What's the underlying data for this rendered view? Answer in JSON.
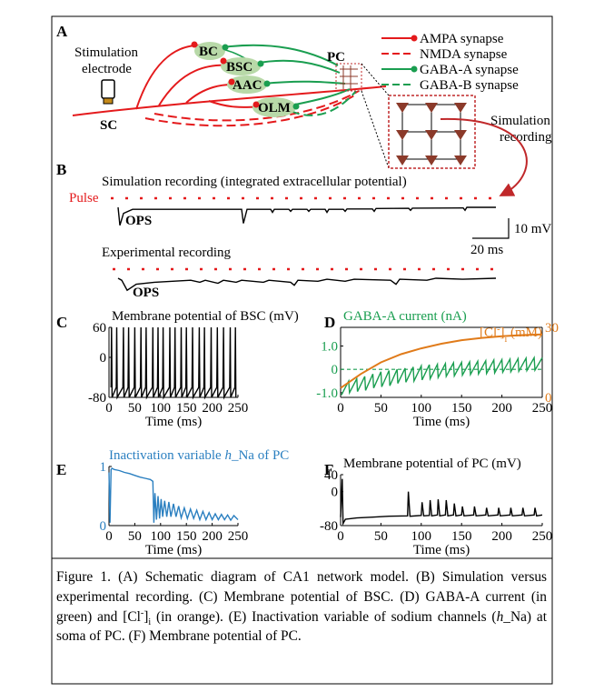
{
  "figure": {
    "panel_labels": [
      "A",
      "B",
      "C",
      "D",
      "E",
      "F"
    ],
    "panel_a": {
      "stimulation_label": [
        "Stimulation",
        "electrode"
      ],
      "sc": "SC",
      "cells": [
        "BC",
        "BSC",
        "AAC",
        "OLM"
      ],
      "pc": "PC",
      "legend": [
        "AMPA synapse",
        "NMDA synapse",
        "GABA-A synapse",
        "GABA-B synapse"
      ],
      "recording_label": [
        "Simulation",
        "recording"
      ]
    },
    "panel_b": {
      "simulation_title": "Simulation recording (integrated extracellular potential)",
      "pulse": "Pulse",
      "ops": "OPS",
      "scale_v": "10 mV",
      "scale_t": "20 ms",
      "experimental_title": "Experimental recording",
      "simulation_trace": {
        "x": [
          0,
          1,
          3,
          8,
          68,
          69,
          71,
          84,
          85,
          86,
          94,
          95,
          96,
          104,
          105,
          106,
          114,
          115,
          116,
          124,
          125,
          126,
          140,
          141,
          142,
          160,
          161,
          162,
          190,
          191,
          192,
          208
        ],
        "values": [
          0,
          -9,
          -3,
          -1,
          -1,
          -8,
          -1,
          -1,
          -2.5,
          -1,
          -1,
          -2,
          -1,
          -1,
          -2,
          -1,
          -1,
          -2.5,
          -1,
          -1,
          -2,
          -0.8,
          -0.8,
          -2,
          -0.6,
          -0.5,
          -1.5,
          -0.4,
          -0.3,
          -1.5,
          0,
          0
        ]
      },
      "experimental_trace": {
        "x": [
          0,
          2,
          5,
          10,
          20,
          30,
          40,
          45,
          48,
          55,
          58,
          65,
          68,
          80,
          83,
          95,
          97,
          99,
          110,
          115,
          125,
          130,
          150,
          153,
          155,
          170,
          175,
          190,
          208
        ],
        "values": [
          0,
          -1,
          -6,
          -3,
          -2,
          -1.5,
          -1,
          -2,
          -1,
          -2.5,
          -1,
          -2,
          -1,
          -2,
          -1,
          -2,
          -3.5,
          -1,
          -1.5,
          -0.5,
          -1.5,
          -0.5,
          -1,
          -3,
          -0.5,
          -1,
          0,
          -0.5,
          0
        ]
      }
    },
    "caption": [
      "Figure 1. (A) Schematic diagram of CA1 network model. (B) Simulation versus experimental recording. (C) Membrane potential of BSC. (D) GABA-A current (in green) and [Cl",
      "-",
      "]",
      "i",
      " (in orange). (E) Inactivation variable of sodium channels (",
      "h",
      "_Na) at soma of PC. (F) Membrane potential of PC."
    ]
  },
  "chart_data": [
    {
      "type": "line",
      "title": "Membrane potential of BSC (mV)",
      "xlabel": "Time (ms)",
      "xlim": [
        0,
        250
      ],
      "xticks": [
        0,
        50,
        100,
        150,
        200,
        250
      ],
      "ylim": [
        -80,
        60
      ],
      "yticks": [
        -80,
        0,
        60
      ],
      "series": [
        {
          "color": "#000000",
          "x": [
            4,
            5,
            6,
            14,
            15,
            16,
            27,
            28,
            29,
            37,
            38,
            39,
            49,
            50,
            51,
            61,
            62,
            63,
            71,
            72,
            73,
            84,
            85,
            86,
            94,
            95,
            96,
            104,
            105,
            106,
            117,
            118,
            119,
            127,
            128,
            129,
            139,
            140,
            141,
            149,
            150,
            151,
            161,
            162,
            163,
            174,
            175,
            176,
            184,
            185,
            186,
            197,
            198,
            199,
            209,
            210,
            211,
            221,
            222,
            223,
            234,
            235,
            236,
            244,
            245,
            246
          ],
          "values": [
            -60,
            60,
            -80,
            -60,
            60,
            -80,
            -60,
            60,
            -80,
            -60,
            60,
            -80,
            -60,
            60,
            -80,
            -60,
            60,
            -80,
            -60,
            60,
            -80,
            -60,
            60,
            -80,
            -60,
            60,
            -80,
            -60,
            60,
            -80,
            -60,
            60,
            -80,
            -60,
            60,
            -80,
            -60,
            60,
            -80,
            -60,
            60,
            -80,
            -60,
            60,
            -80,
            -60,
            60,
            -80,
            -60,
            60,
            -80,
            -60,
            60,
            -80,
            -60,
            60,
            -80,
            -60,
            60,
            -80,
            -60,
            60,
            -80,
            -60,
            60,
            -80
          ]
        }
      ]
    },
    {
      "type": "line",
      "title": "GABA-A current (nA)",
      "title_color": "#1a9e50",
      "xlabel": "Time (ms)",
      "xlim": [
        0,
        250
      ],
      "xticks": [
        0,
        50,
        100,
        150,
        200,
        250
      ],
      "ylim": [
        -1.2,
        1.8
      ],
      "yticks": [
        {
          "value": -1,
          "label": "-1.0"
        },
        0,
        {
          "value": 1,
          "label": "1.0"
        }
      ],
      "ytick_color": "#1a9e50",
      "y2label": [
        "[Cl",
        "-",
        "]",
        "i",
        " (mM)"
      ],
      "y2lim": [
        0,
        30
      ],
      "y2ticks": [
        0,
        30
      ],
      "y2tick_color": "#e07b1a",
      "hline": 0,
      "series": [
        {
          "color": "#1a9e50",
          "x": [
            1,
            10,
            11,
            20,
            21,
            30,
            31,
            40,
            41,
            50,
            51,
            60,
            61,
            70,
            71,
            80,
            81,
            90,
            91,
            100,
            101,
            110,
            111,
            120,
            121,
            130,
            131,
            140,
            141,
            150,
            151,
            160,
            161,
            170,
            171,
            180,
            181,
            190,
            191,
            200,
            201,
            210,
            211,
            220,
            221,
            230,
            231,
            240,
            241,
            250
          ],
          "values": [
            -1.1,
            -0.5,
            -1.0,
            -0.4,
            -0.95,
            -0.3,
            -0.9,
            -0.2,
            -0.8,
            -0.1,
            -0.75,
            -0.05,
            -0.7,
            0.0,
            -0.6,
            0.05,
            -0.55,
            0.1,
            -0.5,
            0.15,
            -0.45,
            0.2,
            -0.4,
            0.22,
            -0.35,
            0.25,
            -0.3,
            0.28,
            -0.28,
            0.3,
            -0.25,
            0.32,
            -0.22,
            0.35,
            -0.2,
            0.37,
            -0.18,
            0.4,
            -0.15,
            0.42,
            -0.12,
            0.44,
            -0.1,
            0.46,
            -0.08,
            0.48,
            -0.05,
            0.5,
            -0.03,
            0.5
          ]
        },
        {
          "color": "#e07b1a",
          "axis": "y2",
          "x": [
            0,
            25,
            50,
            75,
            100,
            125,
            150,
            175,
            200,
            225,
            250
          ],
          "values": [
            4,
            10,
            15,
            18.5,
            21,
            23,
            24.5,
            25.5,
            26.2,
            26.7,
            27
          ]
        }
      ]
    },
    {
      "type": "line",
      "title": [
        "Inactivation variable ",
        "h",
        "_Na of PC"
      ],
      "title_color": "#2a7fc0",
      "xlabel": "Time (ms)",
      "xlim": [
        0,
        250
      ],
      "xticks": [
        0,
        50,
        100,
        150,
        200,
        250
      ],
      "ylim": [
        0,
        1
      ],
      "yticks": [
        0,
        1
      ],
      "ytick_color": "#2a7fc0",
      "series": [
        {
          "color": "#2a7fc0",
          "x": [
            0,
            2,
            4,
            6,
            10,
            20,
            30,
            40,
            50,
            60,
            70,
            80,
            85,
            87,
            89,
            92,
            95,
            98,
            101,
            104,
            108,
            112,
            116,
            120,
            125,
            130,
            135,
            140,
            146,
            152,
            158,
            164,
            170,
            176,
            182,
            188,
            194,
            200,
            206,
            212,
            218,
            224,
            230,
            236,
            242,
            250
          ],
          "values": [
            0.9,
            0.05,
            0.95,
            0.97,
            0.95,
            0.93,
            0.9,
            0.88,
            0.85,
            0.82,
            0.8,
            0.78,
            0.75,
            0.05,
            0.55,
            0.1,
            0.5,
            0.12,
            0.45,
            0.15,
            0.42,
            0.15,
            0.4,
            0.15,
            0.37,
            0.15,
            0.33,
            0.13,
            0.3,
            0.12,
            0.28,
            0.12,
            0.26,
            0.1,
            0.24,
            0.1,
            0.22,
            0.1,
            0.2,
            0.1,
            0.19,
            0.1,
            0.18,
            0.09,
            0.17,
            0.1
          ]
        }
      ]
    },
    {
      "type": "line",
      "title": "Membrane potential of PC (mV)",
      "xlabel": "Time (ms)",
      "xlim": [
        0,
        250
      ],
      "xticks": [
        0,
        50,
        100,
        150,
        200,
        250
      ],
      "ylim": [
        -80,
        40
      ],
      "yticks": [
        -80,
        0,
        40
      ],
      "series": [
        {
          "color": "#000000",
          "x": [
            0,
            2,
            3,
            6,
            20,
            40,
            60,
            83,
            84,
            86,
            100,
            101,
            103,
            110,
            111,
            113,
            120,
            121,
            123,
            130,
            131,
            133,
            140,
            141,
            143,
            150,
            151,
            153,
            165,
            166,
            168,
            180,
            181,
            183,
            195,
            196,
            198,
            210,
            211,
            213,
            225,
            226,
            228,
            240,
            241,
            243,
            250
          ],
          "values": [
            -60,
            30,
            -75,
            -65,
            -62,
            -60,
            -58,
            -57,
            0,
            -58,
            -56,
            -25,
            -57,
            -56,
            -20,
            -57,
            -55,
            -18,
            -57,
            -55,
            -20,
            -57,
            -55,
            -28,
            -57,
            -55,
            -35,
            -57,
            -55,
            -35,
            -57,
            -55,
            -38,
            -57,
            -55,
            -38,
            -57,
            -55,
            -38,
            -57,
            -55,
            -38,
            -57,
            -55,
            -38,
            -57,
            -55
          ]
        }
      ]
    }
  ]
}
